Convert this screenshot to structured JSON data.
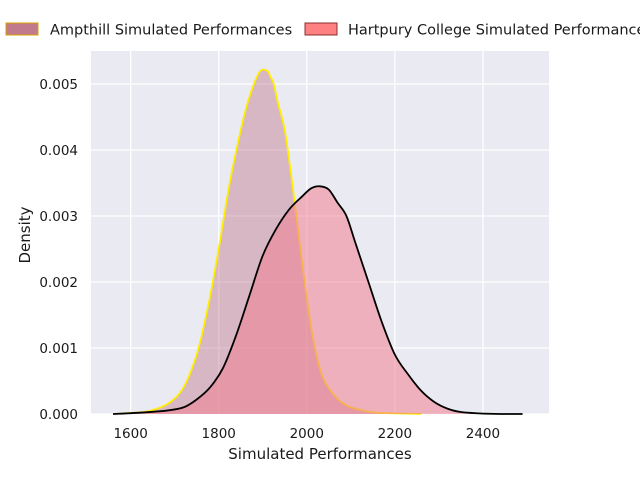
{
  "chart_data": {
    "type": "area",
    "title": "",
    "xlabel": "Simulated Performances",
    "ylabel": "Density",
    "xlim": [
      1510,
      2550
    ],
    "ylim": [
      0,
      0.0055
    ],
    "xticks": [
      1600,
      1800,
      2000,
      2200,
      2400
    ],
    "yticks": [
      0.0,
      0.001,
      0.002,
      0.003,
      0.004,
      0.005
    ],
    "ytick_labels": [
      "0.000",
      "0.001",
      "0.002",
      "0.003",
      "0.004",
      "0.005"
    ],
    "grid": true,
    "legend_position": "top",
    "series": [
      {
        "name": "Ampthill Simulated Performances",
        "fill_color": "#c07a8c",
        "fill_opacity": 0.45,
        "legend_fill": "#c07a8c",
        "legend_edge": "#d4a300",
        "line_color": "#ffee00",
        "x": [
          1580,
          1630,
          1660,
          1690,
          1720,
          1750,
          1775,
          1800,
          1825,
          1850,
          1865,
          1880,
          1895,
          1910,
          1918,
          1925,
          1935,
          1950,
          1965,
          1980,
          1995,
          2010,
          2025,
          2040,
          2060,
          2080,
          2100,
          2130,
          2160,
          2200,
          2260
        ],
        "y": [
          1e-05,
          3e-05,
          8e-05,
          0.00018,
          0.0004,
          0.0009,
          0.0016,
          0.0025,
          0.0035,
          0.0043,
          0.0047,
          0.005,
          0.0052,
          0.0052,
          0.0051,
          0.005,
          0.0047,
          0.0043,
          0.0036,
          0.0028,
          0.002,
          0.0013,
          0.0008,
          0.0005,
          0.0003,
          0.00017,
          0.0001,
          5e-05,
          2e-05,
          1e-05,
          0.0
        ]
      },
      {
        "name": "Hartpury College Simulated Performances",
        "fill_color": "#f08090",
        "fill_opacity": 0.55,
        "legend_fill": "#ff8080",
        "legend_edge": "#8a3030",
        "line_color": "#000000",
        "x": [
          1560,
          1620,
          1680,
          1720,
          1750,
          1780,
          1810,
          1840,
          1870,
          1900,
          1930,
          1960,
          1990,
          2010,
          2030,
          2050,
          2070,
          2090,
          2110,
          2140,
          2170,
          2200,
          2230,
          2260,
          2290,
          2320,
          2350,
          2390,
          2440,
          2490
        ],
        "y": [
          0.0,
          2e-05,
          5e-05,
          0.0001,
          0.00022,
          0.0004,
          0.0007,
          0.0012,
          0.0018,
          0.0024,
          0.0028,
          0.0031,
          0.0033,
          0.00342,
          0.00345,
          0.0034,
          0.0032,
          0.003,
          0.0026,
          0.002,
          0.0014,
          0.0009,
          0.0006,
          0.00035,
          0.00018,
          8e-05,
          3e-05,
          1e-05,
          0.0,
          0.0
        ]
      }
    ]
  }
}
